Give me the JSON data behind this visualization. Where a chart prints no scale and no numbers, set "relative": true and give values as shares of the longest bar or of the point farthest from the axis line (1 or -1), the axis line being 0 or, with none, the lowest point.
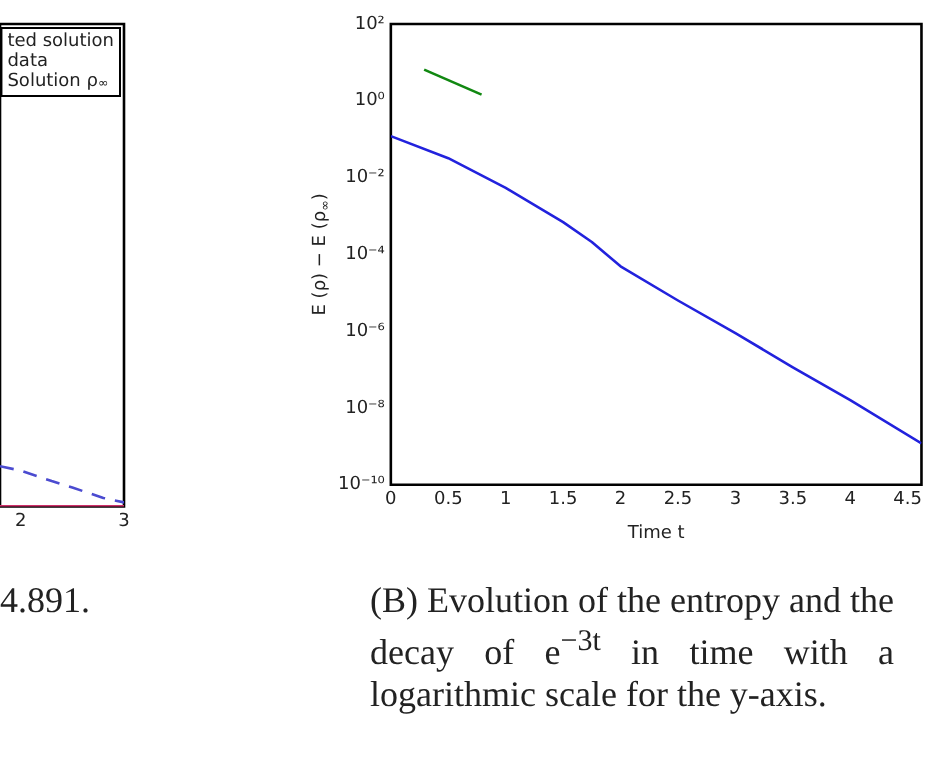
{
  "chart_data": [
    {
      "type": "line",
      "title": "4.891.",
      "annotations": [
        "ted solution",
        "data",
        "Solution ρ$_{∞}$"
      ],
      "relative": true,
      "xlim": [
        1.8,
        3
      ],
      "xticks": [
        2,
        3
      ],
      "tick_labels": "x",
      "legend": false,
      "grid": false,
      "series": [
        {
          "color": "#4b4bd0",
          "line_style": "dashed",
          "x": [
            1.8,
            2,
            2.3,
            2.5,
            2.8,
            3
          ],
          "values": [
            1,
            0.89,
            0.63,
            0.47,
            0.21,
            0.1
          ]
        },
        {
          "color": "#d0306a",
          "line_style": "solid",
          "x": [
            1.8,
            3
          ],
          "values": [
            0,
            0
          ]
        }
      ]
    },
    {
      "type": "line",
      "title": "(B) Evolution of the entropy and the decay of e$^{−3t}$ in time with a logarithmic scale for the y-axis.",
      "xlabel": "Time t",
      "ylabel": "E (ρ) − E (ρ$_{∞}$)",
      "log": "y",
      "legend": false,
      "grid": false,
      "xlim": [
        0,
        4.62
      ],
      "xticks": [
        0,
        0.5,
        1,
        1.5,
        2,
        2.5,
        3,
        3.5,
        4,
        4.5
      ],
      "ylim": [
        1e-10,
        100
      ],
      "yticks": [
        {
          "value": 1e-10,
          "label": "10⁻¹⁰"
        },
        {
          "value": 1e-08,
          "label": "10⁻⁸"
        },
        {
          "value": 1e-06,
          "label": "10⁻⁶"
        },
        {
          "value": 0.0001,
          "label": "10⁻⁴"
        },
        {
          "value": 0.01,
          "label": "10⁻²"
        },
        {
          "value": 1,
          "label": "10⁰"
        },
        {
          "value": 100,
          "label": "10²"
        }
      ],
      "series": [
        {
          "color": "#2222dd",
          "x": [
            0,
            0.5,
            1,
            1.5,
            1.75,
            2,
            2.5,
            3,
            3.5,
            4,
            4.62
          ],
          "values": [
            0.12,
            0.032,
            0.0054,
            0.00069,
            0.00021,
            4.9e-05,
            6.3e-06,
            8.9e-07,
            1.15e-07,
            1.6e-08,
            1.2e-09
          ]
        },
        {
          "color": "#118811",
          "x": [
            0.29,
            0.79
          ],
          "values": [
            6.5,
            1.45
          ]
        }
      ]
    }
  ]
}
